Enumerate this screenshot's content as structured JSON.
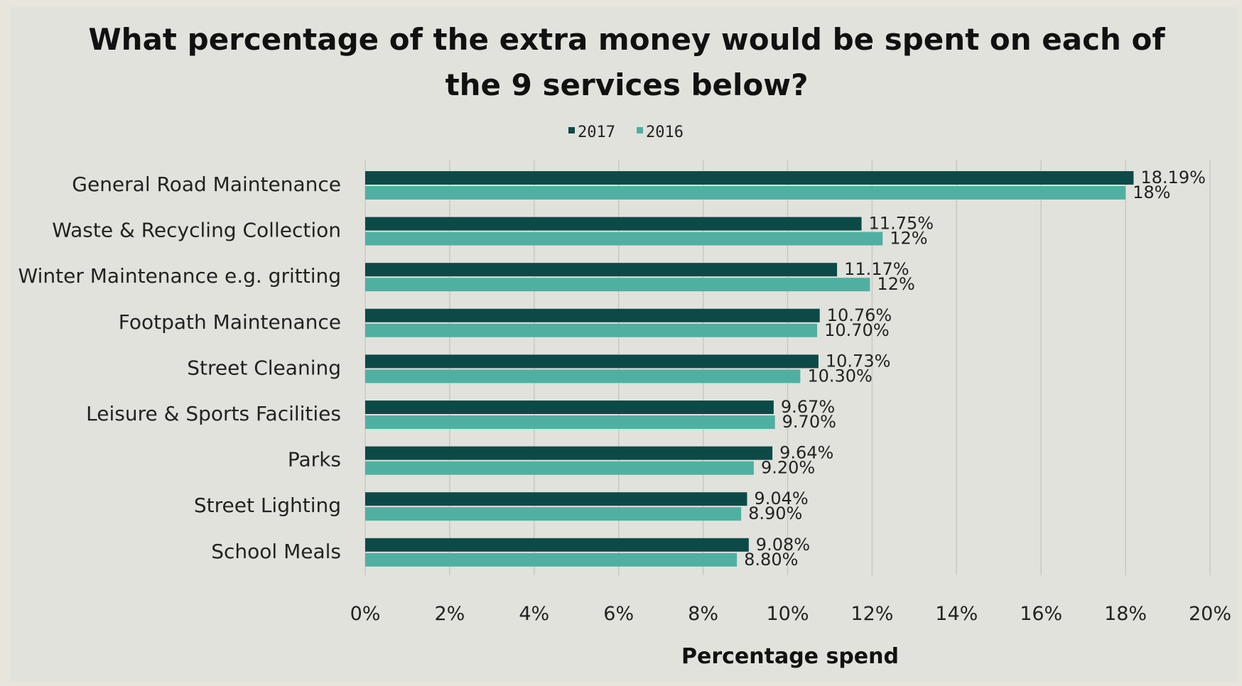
{
  "chart_data": {
    "type": "bar",
    "orientation": "horizontal",
    "title_lines": [
      "What percentage of the extra money would be spent on each of",
      "the 9 services below?"
    ],
    "xlabel": "Percentage spend",
    "ylabel": "",
    "xlim": [
      0,
      20
    ],
    "x_ticks": [
      "0%",
      "2%",
      "4%",
      "6%",
      "8%",
      "10%",
      "12%",
      "14%",
      "16%",
      "18%",
      "20%"
    ],
    "grid": "vertical",
    "legend_position": "top",
    "categories": [
      "General Road Maintenance",
      "Waste & Recycling Collection",
      "Winter Maintenance e.g. gritting",
      "Footpath Maintenance",
      "Street Cleaning",
      "Leisure & Sports Facilities",
      "Parks",
      "Street Lighting",
      "School Meals"
    ],
    "series": [
      {
        "name": "2017",
        "color": "#0c4a48",
        "values": [
          18.19,
          11.75,
          11.17,
          10.76,
          10.73,
          9.67,
          9.64,
          9.04,
          9.08
        ],
        "labels": [
          "18.19%",
          "11.75%",
          "11.17%",
          "10.76%",
          "10.73%",
          "9.67%",
          "9.64%",
          "9.04%",
          "9.08%"
        ]
      },
      {
        "name": "2016",
        "color": "#4fb0a2",
        "values": [
          18,
          12.25,
          11.95,
          10.7,
          10.3,
          9.7,
          9.2,
          8.9,
          8.8
        ],
        "labels": [
          "18%",
          "12%",
          "12%",
          "10.70%",
          "10.30%",
          "9.70%",
          "9.20%",
          "8.90%",
          "8.80%"
        ]
      }
    ]
  }
}
